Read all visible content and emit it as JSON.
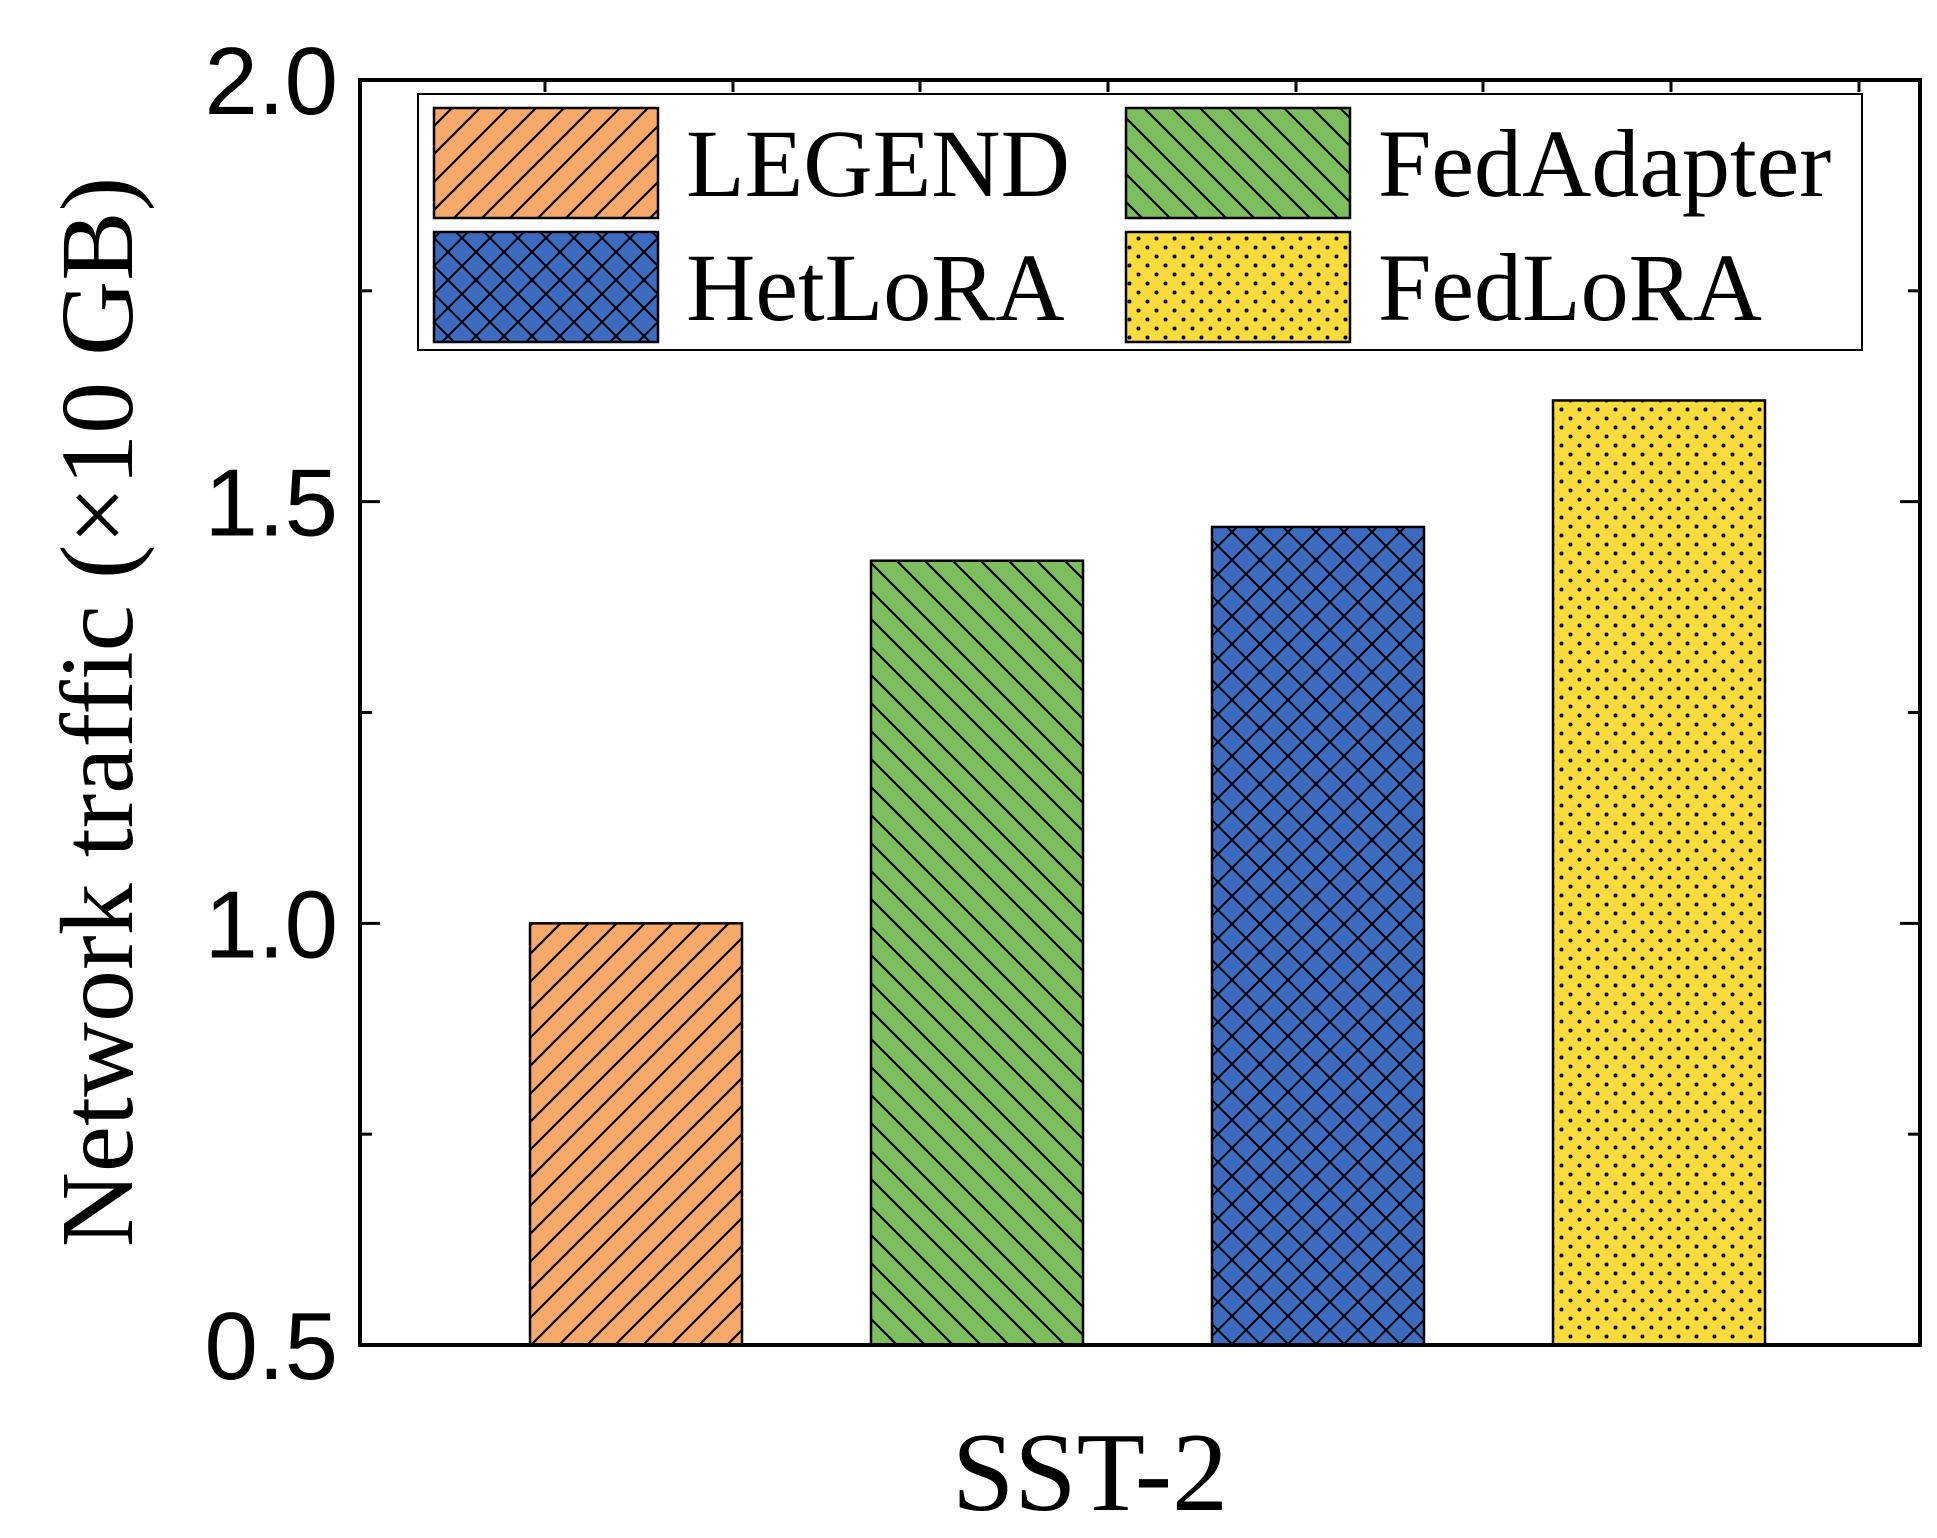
{
  "chart_data": {
    "type": "bar",
    "categories": [
      "SST-2"
    ],
    "series": [
      {
        "name": "LEGEND",
        "values": [
          1.0
        ],
        "color": "#f6a96b",
        "pattern": "diagonal-forward"
      },
      {
        "name": "FedAdapter",
        "values": [
          1.43
        ],
        "color": "#7dbe5e",
        "pattern": "diagonal-back"
      },
      {
        "name": "HetLoRA",
        "values": [
          1.47
        ],
        "color": "#3d6bbf",
        "pattern": "crosshatch"
      },
      {
        "name": "FedLoRA",
        "values": [
          1.62
        ],
        "color": "#fbdc3c",
        "pattern": "dots"
      }
    ],
    "ylabel": "Network traffic (×10 GB)",
    "xlabel": "SST-2",
    "ylim": [
      0.5,
      2.0
    ],
    "yticks": [
      "0.5",
      "1.0",
      "1.5",
      "2.0"
    ],
    "grid": false,
    "legend": "top, 2 columns"
  }
}
